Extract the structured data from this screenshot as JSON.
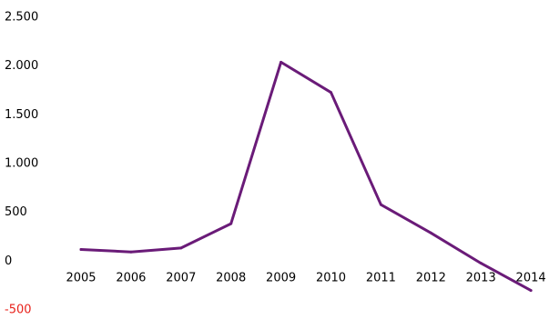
{
  "chart_data": {
    "type": "line",
    "categories": [
      "2005",
      "2006",
      "2007",
      "2008",
      "2009",
      "2010",
      "2011",
      "2012",
      "2013",
      "2014"
    ],
    "series": [
      {
        "values": [
          110,
          85,
          125,
          375,
          2030,
          1720,
          570,
          280,
          -30,
          -310
        ],
        "color": "#6a1b78"
      }
    ],
    "y_ticks": [
      {
        "value": 2500,
        "label": "2.500",
        "color": "#000000"
      },
      {
        "value": 2000,
        "label": "2.000",
        "color": "#000000"
      },
      {
        "value": 1500,
        "label": "1.500",
        "color": "#000000"
      },
      {
        "value": 1000,
        "label": "1.000",
        "color": "#000000"
      },
      {
        "value": 500,
        "label": "500",
        "color": "#000000"
      },
      {
        "value": 0,
        "label": "0",
        "color": "#000000"
      },
      {
        "value": -500,
        "label": "-500",
        "color": "#e8221b"
      }
    ],
    "ylim": [
      -500,
      2500
    ],
    "grid": false,
    "title": "",
    "xlabel": "",
    "ylabel": ""
  }
}
